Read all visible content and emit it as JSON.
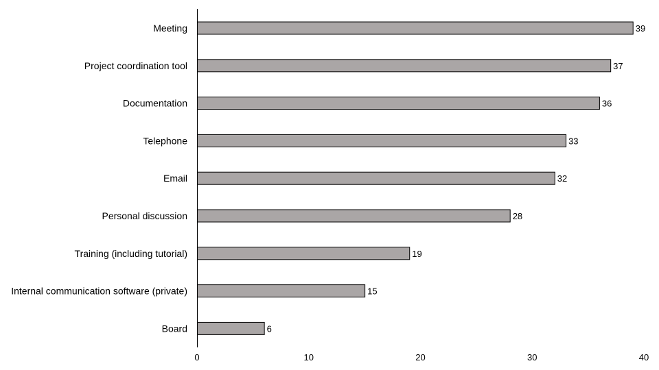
{
  "chart_data": {
    "type": "bar",
    "orientation": "horizontal",
    "title": "",
    "xlabel": "",
    "ylabel": "",
    "categories": [
      "Meeting",
      "Project coordination tool",
      "Documentation",
      "Telephone",
      "Email",
      "Personal discussion",
      "Training (including tutorial)",
      "Internal communication software (private)",
      "Board"
    ],
    "values": [
      39,
      37,
      36,
      33,
      32,
      28,
      19,
      15,
      6
    ],
    "xlim": [
      0,
      40
    ],
    "xticks": [
      0,
      10,
      20,
      30,
      40
    ],
    "grid": false,
    "legend": "none",
    "bar_color": "#aaa6a6",
    "bar_edge_color": "#000000"
  }
}
